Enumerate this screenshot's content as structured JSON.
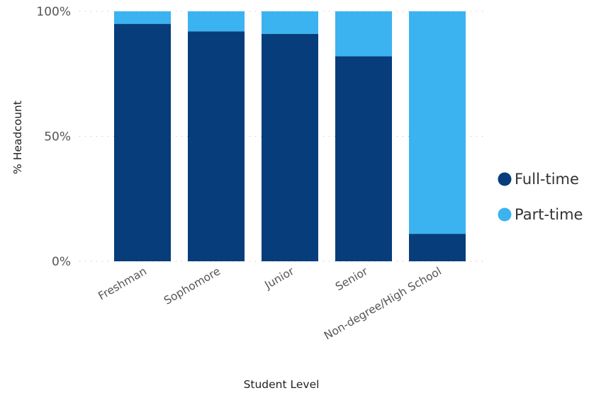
{
  "chart_data": {
    "type": "bar",
    "stacked": true,
    "normalized": true,
    "categories": [
      "Freshman",
      "Sophomore",
      "Junior",
      "Senior",
      "Non-degree/High School"
    ],
    "series": [
      {
        "name": "Full-time",
        "values": [
          95,
          92,
          91,
          82,
          11
        ],
        "color": "#063D7A"
      },
      {
        "name": "Part-time",
        "values": [
          5,
          8,
          9,
          18,
          89
        ],
        "color": "#3BB3F0"
      }
    ],
    "xlabel": "Student Level",
    "ylabel": "% Headcount",
    "ylim": [
      0,
      100
    ],
    "yticks": [
      "0%",
      "50%",
      "100%"
    ],
    "grid": true,
    "legend_position": "right"
  }
}
